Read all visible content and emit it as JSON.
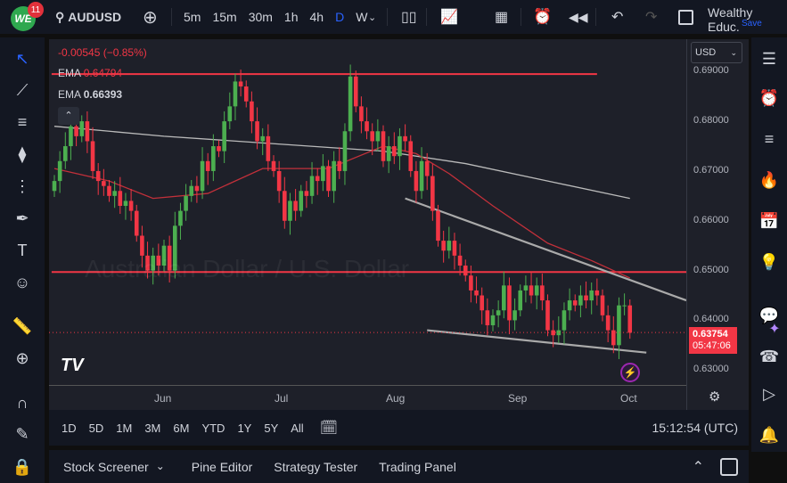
{
  "topbar": {
    "logo": "WE",
    "notifications": "11",
    "symbol": "AUDUSD",
    "intervals": [
      "5m",
      "15m",
      "30m",
      "1h",
      "4h",
      "D",
      "W"
    ],
    "active_interval": "D",
    "account": "Wealthy Educ.",
    "save": "Save"
  },
  "legend": {
    "change": "-0.00545 (−0.85%)",
    "ema1_label": "EMA",
    "ema1_value": "0.64794",
    "ema2_label": "EMA",
    "ema2_value": "0.66393"
  },
  "watermark": "Australian Dollar / U.S. Dollar",
  "price_scale": {
    "currency": "USD",
    "ticks": [
      "0.69000",
      "0.68000",
      "0.67000",
      "0.66000",
      "0.65000",
      "0.64000",
      "0.63000"
    ],
    "last_price": "0.63754",
    "countdown": "05:47:06"
  },
  "time_axis": [
    "Jun",
    "Jul",
    "Aug",
    "Sep",
    "Oct"
  ],
  "range_bar": {
    "ranges": [
      "1D",
      "5D",
      "1M",
      "3M",
      "6M",
      "YTD",
      "1Y",
      "5Y",
      "All"
    ],
    "clock": "15:12:54 (UTC)"
  },
  "bottom_tabs": [
    "Stock Screener",
    "Pine Editor",
    "Strategy Tester",
    "Trading Panel"
  ],
  "colors": {
    "up": "#4caf50",
    "down": "#f23645",
    "bg": "#1e2029",
    "accent": "#2962ff"
  },
  "chart_data": {
    "type": "candlestick",
    "symbol": "AUDUSD",
    "interval": "D",
    "ylim": [
      0.627,
      0.6965
    ],
    "closes": [
      0.668,
      0.672,
      0.675,
      0.679,
      0.677,
      0.68,
      0.676,
      0.67,
      0.668,
      0.667,
      0.665,
      0.666,
      0.663,
      0.664,
      0.662,
      0.657,
      0.653,
      0.65,
      0.653,
      0.651,
      0.655,
      0.65,
      0.659,
      0.662,
      0.665,
      0.667,
      0.666,
      0.672,
      0.67,
      0.675,
      0.674,
      0.68,
      0.683,
      0.688,
      0.687,
      0.684,
      0.68,
      0.676,
      0.677,
      0.672,
      0.67,
      0.666,
      0.66,
      0.664,
      0.662,
      0.666,
      0.665,
      0.669,
      0.668,
      0.671,
      0.666,
      0.672,
      0.67,
      0.678,
      0.689,
      0.683,
      0.68,
      0.678,
      0.676,
      0.678,
      0.672,
      0.675,
      0.673,
      0.677,
      0.676,
      0.67,
      0.666,
      0.672,
      0.669,
      0.662,
      0.656,
      0.654,
      0.656,
      0.653,
      0.651,
      0.649,
      0.646,
      0.645,
      0.642,
      0.639,
      0.641,
      0.642,
      0.647,
      0.64,
      0.642,
      0.646,
      0.647,
      0.645,
      0.647,
      0.644,
      0.638,
      0.637,
      0.638,
      0.642,
      0.644,
      0.643,
      0.645,
      0.644,
      0.646,
      0.645,
      0.641,
      0.638,
      0.635,
      0.643,
      0.643,
      0.6375
    ],
    "ema_slow": [
      [
        0,
        0.679
      ],
      [
        20,
        0.677
      ],
      [
        40,
        0.6755
      ],
      [
        60,
        0.674
      ],
      [
        75,
        0.6715
      ],
      [
        90,
        0.668
      ],
      [
        105,
        0.6645
      ]
    ],
    "ema_fast": [
      [
        0,
        0.6705
      ],
      [
        10,
        0.668
      ],
      [
        18,
        0.6645
      ],
      [
        28,
        0.6655
      ],
      [
        38,
        0.6705
      ],
      [
        50,
        0.6705
      ],
      [
        60,
        0.675
      ],
      [
        66,
        0.6735
      ],
      [
        72,
        0.6695
      ],
      [
        80,
        0.663
      ],
      [
        90,
        0.6555
      ],
      [
        98,
        0.652
      ],
      [
        105,
        0.6485
      ]
    ],
    "hlines": [
      {
        "price": 0.6895,
        "from": -0.5,
        "to": 99
      },
      {
        "price": 0.6497,
        "from": -0.5,
        "to": 116
      }
    ],
    "trendlines": [
      [
        [
          64,
          0.6645
        ],
        [
          115.5,
          0.644
        ]
      ],
      [
        [
          68,
          0.638
        ],
        [
          108,
          0.6335
        ]
      ]
    ]
  }
}
